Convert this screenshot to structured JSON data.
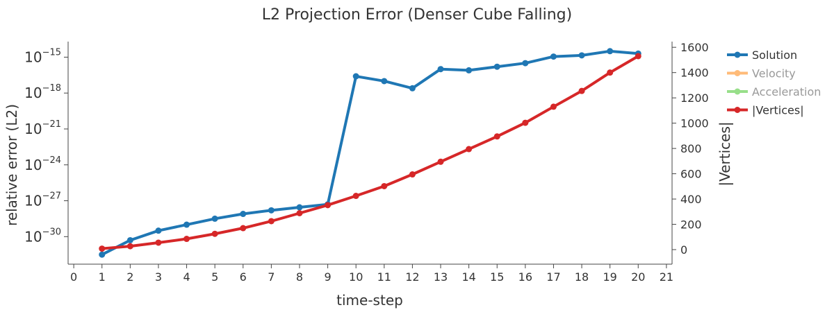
{
  "chart_data": {
    "type": "line",
    "title": "L2 Projection Error (Denser Cube Falling)",
    "xlabel": "time-step",
    "ylabel_left": "relative error (L2)",
    "ylabel_right": "|Vertices|",
    "x": [
      1,
      2,
      3,
      4,
      5,
      6,
      7,
      8,
      9,
      10,
      11,
      12,
      13,
      14,
      15,
      16,
      17,
      18,
      19,
      20
    ],
    "x_ticks": [
      0,
      1,
      2,
      3,
      4,
      5,
      6,
      7,
      8,
      9,
      10,
      11,
      12,
      13,
      14,
      15,
      16,
      17,
      18,
      19,
      20,
      21
    ],
    "xlim": [
      -0.2,
      21.2
    ],
    "y_left": {
      "scale": "log",
      "ticks": [
        {
          "base": "10",
          "exp": "−15",
          "value": 1e-15
        },
        {
          "base": "10",
          "exp": "−18",
          "value": 1e-18
        },
        {
          "base": "10",
          "exp": "−21",
          "value": 1e-21
        },
        {
          "base": "10",
          "exp": "−24",
          "value": 1e-24
        },
        {
          "base": "10",
          "exp": "−27",
          "value": 1e-27
        },
        {
          "base": "10",
          "exp": "−30",
          "value": 1e-30
        }
      ],
      "log_range": [
        -32.3,
        -13.7
      ]
    },
    "y_right": {
      "scale": "linear",
      "ticks": [
        0,
        200,
        400,
        600,
        800,
        1000,
        1200,
        1400,
        1600
      ],
      "range": [
        -115,
        1645
      ]
    },
    "series": [
      {
        "name": "Solution",
        "axis": "left",
        "color": "#1f77b4",
        "visible": true,
        "log_values": [
          -31.5,
          -30.3,
          -29.5,
          -29.0,
          -28.5,
          -28.1,
          -27.8,
          -27.55,
          -27.3,
          -16.6,
          -17.0,
          -17.6,
          -16.0,
          -16.1,
          -15.8,
          -15.5,
          -14.95,
          -14.85,
          -14.5,
          -14.7
        ]
      },
      {
        "name": "Velocity",
        "axis": "left",
        "color": "#ffbb78",
        "visible": false
      },
      {
        "name": "Acceleration",
        "axis": "left",
        "color": "#98df8a",
        "visible": false
      },
      {
        "name": "|Vertices|",
        "axis": "right",
        "color": "#d62728",
        "visible": true,
        "values": [
          8,
          27,
          55,
          85,
          125,
          170,
          225,
          288,
          352,
          425,
          502,
          595,
          695,
          795,
          895,
          1003,
          1130,
          1255,
          1400,
          1530
        ]
      }
    ],
    "legend_position": "top-right"
  }
}
